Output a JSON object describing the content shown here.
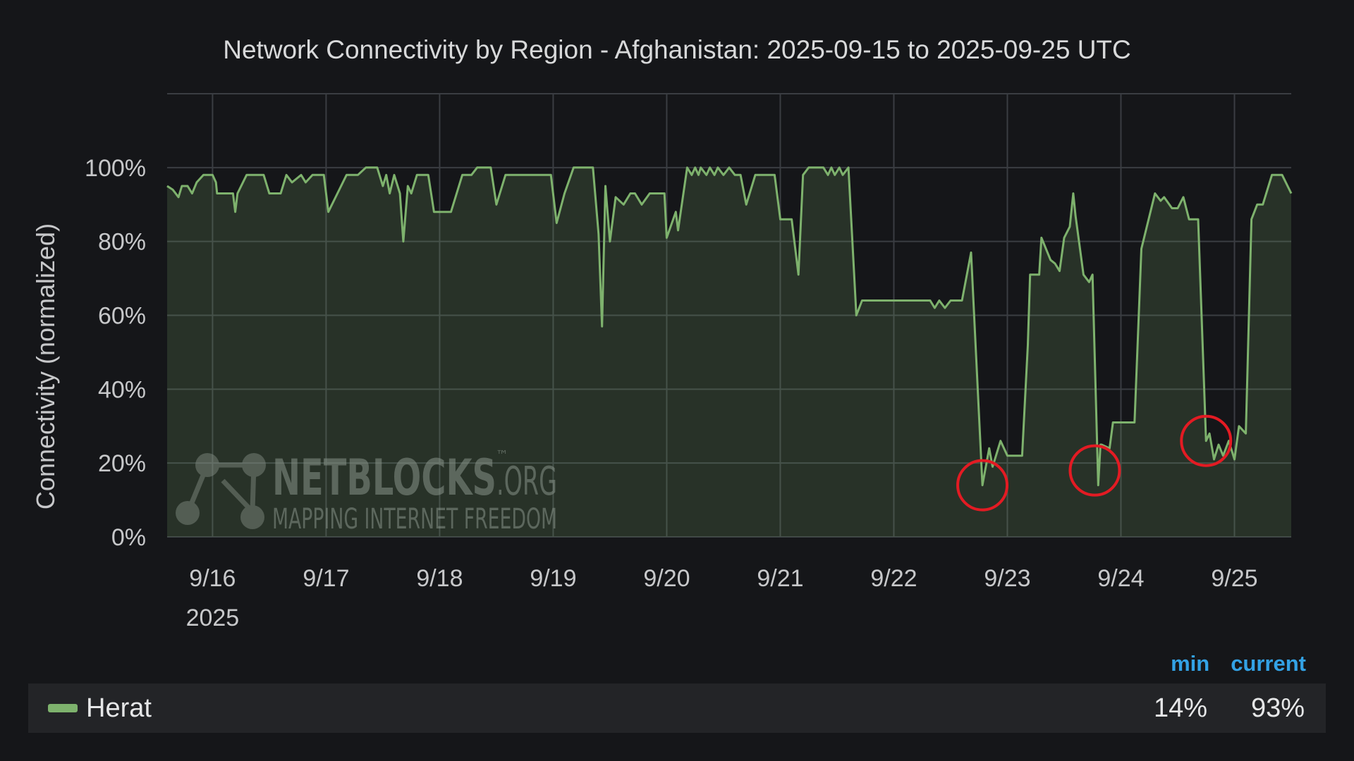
{
  "chart_data": {
    "type": "area",
    "title": "Network Connectivity by Region - Afghanistan: 2025-09-15 to 2025-09-25 UTC",
    "ylabel": "Connectivity (normalized)",
    "xlabel": "",
    "x_ticks": [
      "9/16",
      "9/17",
      "9/18",
      "9/19",
      "9/20",
      "9/21",
      "9/22",
      "9/23",
      "9/24",
      "9/25"
    ],
    "x_year_label": "2025",
    "y_ticks": [
      "0%",
      "20%",
      "40%",
      "60%",
      "80%",
      "100%"
    ],
    "ylim": [
      0,
      120
    ],
    "xlim_days_from_sep16": [
      -0.4,
      9.5
    ],
    "grid": true,
    "series": [
      {
        "name": "Herat",
        "color": "#7eb26d",
        "points_days_from_sep16_pct": [
          [
            -0.4,
            95
          ],
          [
            -0.35,
            94
          ],
          [
            -0.3,
            92
          ],
          [
            -0.27,
            95
          ],
          [
            -0.22,
            95
          ],
          [
            -0.18,
            93
          ],
          [
            -0.14,
            96
          ],
          [
            -0.08,
            98
          ],
          [
            0.0,
            98
          ],
          [
            0.03,
            96
          ],
          [
            0.04,
            93
          ],
          [
            0.18,
            93
          ],
          [
            0.2,
            88
          ],
          [
            0.22,
            93
          ],
          [
            0.3,
            98
          ],
          [
            0.45,
            98
          ],
          [
            0.5,
            93
          ],
          [
            0.6,
            93
          ],
          [
            0.65,
            98
          ],
          [
            0.7,
            96
          ],
          [
            0.78,
            98
          ],
          [
            0.82,
            96
          ],
          [
            0.88,
            98
          ],
          [
            0.98,
            98
          ],
          [
            1.02,
            88
          ],
          [
            1.1,
            93
          ],
          [
            1.18,
            98
          ],
          [
            1.28,
            98
          ],
          [
            1.35,
            100
          ],
          [
            1.45,
            100
          ],
          [
            1.5,
            95
          ],
          [
            1.53,
            98
          ],
          [
            1.56,
            93
          ],
          [
            1.6,
            98
          ],
          [
            1.65,
            93
          ],
          [
            1.68,
            80
          ],
          [
            1.72,
            95
          ],
          [
            1.75,
            93
          ],
          [
            1.8,
            98
          ],
          [
            1.9,
            98
          ],
          [
            1.95,
            88
          ],
          [
            2.1,
            88
          ],
          [
            2.2,
            98
          ],
          [
            2.28,
            98
          ],
          [
            2.33,
            100
          ],
          [
            2.45,
            100
          ],
          [
            2.5,
            90
          ],
          [
            2.58,
            98
          ],
          [
            2.7,
            98
          ],
          [
            2.98,
            98
          ],
          [
            3.03,
            85
          ],
          [
            3.1,
            93
          ],
          [
            3.18,
            100
          ],
          [
            3.35,
            100
          ],
          [
            3.4,
            82
          ],
          [
            3.43,
            57
          ],
          [
            3.46,
            95
          ],
          [
            3.5,
            80
          ],
          [
            3.55,
            92
          ],
          [
            3.62,
            90
          ],
          [
            3.68,
            93
          ],
          [
            3.72,
            93
          ],
          [
            3.78,
            90
          ],
          [
            3.85,
            93
          ],
          [
            3.98,
            93
          ],
          [
            4.0,
            81
          ],
          [
            4.08,
            88
          ],
          [
            4.1,
            83
          ],
          [
            4.18,
            100
          ],
          [
            4.22,
            98
          ],
          [
            4.25,
            100
          ],
          [
            4.28,
            98
          ],
          [
            4.3,
            100
          ],
          [
            4.35,
            98
          ],
          [
            4.38,
            100
          ],
          [
            4.42,
            98
          ],
          [
            4.45,
            100
          ],
          [
            4.5,
            98
          ],
          [
            4.55,
            100
          ],
          [
            4.6,
            98
          ],
          [
            4.65,
            98
          ],
          [
            4.7,
            90
          ],
          [
            4.78,
            98
          ],
          [
            4.95,
            98
          ],
          [
            5.0,
            86
          ],
          [
            5.1,
            86
          ],
          [
            5.16,
            71
          ],
          [
            5.2,
            98
          ],
          [
            5.25,
            100
          ],
          [
            5.38,
            100
          ],
          [
            5.42,
            98
          ],
          [
            5.45,
            100
          ],
          [
            5.48,
            98
          ],
          [
            5.52,
            100
          ],
          [
            5.55,
            98
          ],
          [
            5.6,
            100
          ],
          [
            5.67,
            60
          ],
          [
            5.72,
            64
          ],
          [
            6.32,
            64
          ],
          [
            6.36,
            62
          ],
          [
            6.4,
            64
          ],
          [
            6.45,
            62
          ],
          [
            6.5,
            64
          ],
          [
            6.6,
            64
          ],
          [
            6.68,
            77
          ],
          [
            6.78,
            14
          ],
          [
            6.84,
            24
          ],
          [
            6.87,
            19
          ],
          [
            6.94,
            26
          ],
          [
            7.0,
            22
          ],
          [
            7.13,
            22
          ],
          [
            7.18,
            52
          ],
          [
            7.2,
            71
          ],
          [
            7.28,
            71
          ],
          [
            7.3,
            81
          ],
          [
            7.38,
            75
          ],
          [
            7.42,
            74
          ],
          [
            7.46,
            72
          ],
          [
            7.5,
            81
          ],
          [
            7.55,
            84
          ],
          [
            7.58,
            93
          ],
          [
            7.6,
            87
          ],
          [
            7.67,
            71
          ],
          [
            7.72,
            69
          ],
          [
            7.75,
            71
          ],
          [
            7.82,
            25
          ],
          [
            7.8,
            14
          ],
          [
            7.83,
            25
          ],
          [
            7.9,
            24
          ],
          [
            7.93,
            31
          ],
          [
            8.05,
            31
          ],
          [
            8.12,
            31
          ],
          [
            8.18,
            78
          ],
          [
            8.3,
            93
          ],
          [
            8.35,
            91
          ],
          [
            8.38,
            92
          ],
          [
            8.45,
            89
          ],
          [
            8.5,
            89
          ],
          [
            8.55,
            92
          ],
          [
            8.6,
            86
          ],
          [
            8.68,
            86
          ],
          [
            8.75,
            26
          ],
          [
            8.78,
            28
          ],
          [
            8.82,
            21
          ],
          [
            8.86,
            25
          ],
          [
            8.9,
            22
          ],
          [
            8.95,
            26
          ],
          [
            9.0,
            21
          ],
          [
            9.04,
            30
          ],
          [
            9.1,
            28
          ],
          [
            9.15,
            86
          ],
          [
            9.2,
            90
          ],
          [
            9.25,
            90
          ],
          [
            9.33,
            98
          ],
          [
            9.42,
            98
          ],
          [
            9.5,
            93
          ]
        ]
      }
    ],
    "annotations": [
      {
        "shape": "circle",
        "color": "#e31b23",
        "at_days_from_sep16": 6.78,
        "at_pct": 14
      },
      {
        "shape": "circle",
        "color": "#e31b23",
        "at_days_from_sep16": 7.77,
        "at_pct": 18
      },
      {
        "shape": "circle",
        "color": "#e31b23",
        "at_days_from_sep16": 8.75,
        "at_pct": 26
      }
    ]
  },
  "watermark": {
    "brand": "NETBLOCKS",
    "tm": "™",
    "suffix": ".ORG",
    "tagline": "MAPPING INTERNET FREEDOM"
  },
  "legend": {
    "headers": {
      "min": "min",
      "current": "current"
    },
    "rows": [
      {
        "name": "Herat",
        "min": "14%",
        "current": "93%"
      }
    ]
  }
}
